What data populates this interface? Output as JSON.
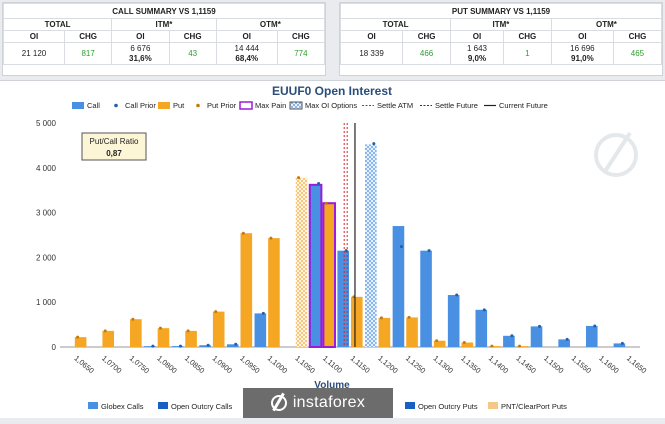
{
  "call_summary": {
    "title": "CALL SUMMARY VS 1,1159",
    "headers": {
      "total": "TOTAL",
      "itm": "ITM*",
      "otm": "OTM*"
    },
    "subheaders": [
      "OI",
      "CHG",
      "OI",
      "CHG",
      "OI",
      "CHG"
    ],
    "total_oi": "21 120",
    "total_chg": "817",
    "itm_oi": "6 676",
    "itm_pct": "31,6%",
    "itm_chg": "43",
    "otm_oi": "14 444",
    "otm_pct": "68,4%",
    "otm_chg": "774"
  },
  "put_summary": {
    "title": "PUT SUMMARY VS 1,1159",
    "headers": {
      "total": "TOTAL",
      "itm": "ITM*",
      "otm": "OTM*"
    },
    "subheaders": [
      "OI",
      "CHG",
      "OI",
      "CHG",
      "OI",
      "CHG"
    ],
    "total_oi": "18 339",
    "total_chg": "466",
    "itm_oi": "1 643",
    "itm_pct": "9,0%",
    "itm_chg": "1",
    "otm_oi": "16 696",
    "otm_pct": "91,0%",
    "otm_chg": "465"
  },
  "ratio_box": {
    "label": "Put/Call Ratio",
    "value": "0,87"
  },
  "bottom_legend": [
    "Globex Calls",
    "Open Outcry Calls",
    "Open Outcry Puts",
    "PNT/ClearPort Puts"
  ],
  "banner": {
    "text": "instaforex"
  },
  "colors": {
    "call": "#4a90e2",
    "put": "#f5a623",
    "max_pain": "#9b1bd8",
    "settle_atm": "#e02020",
    "green": "#2e9d2e"
  },
  "chart_data": {
    "type": "bar",
    "title": "EUUF0 Open Interest",
    "xlabel": "Volume",
    "ylabel": "",
    "ylim": [
      0,
      5000
    ],
    "yticks": [
      0,
      1000,
      2000,
      3000,
      4000,
      5000
    ],
    "ytick_labels": [
      "0",
      "1 000",
      "2 000",
      "3 000",
      "4 000",
      "5 000"
    ],
    "categories": [
      "1,0650",
      "1,0700",
      "1,0750",
      "1,0800",
      "1,0850",
      "1,0900",
      "1,0950",
      "1,1000",
      "1,1050",
      "1,1100",
      "1,1150",
      "1,1200",
      "1,1250",
      "1,1300",
      "1,1350",
      "1,1400",
      "1,1450",
      "1,1500",
      "1,1550",
      "1,1600",
      "1,1650"
    ],
    "tick_labels": [
      "1,0650",
      "1,0700",
      "1,0750",
      "1,0800",
      "1,0850",
      "1,0900",
      "1,0950",
      "1,1000",
      "1,1050",
      "1,1100",
      "1,1150",
      "1,1200",
      "1,1250",
      "1,1300",
      "1,1350",
      "1,1400",
      "1,1450",
      "1,1500",
      "1,1550",
      "1,1600",
      "1,1650"
    ],
    "legend": [
      "Call",
      "Call Prior",
      "Put",
      "Put Prior",
      "Max Pain",
      "Max OI Options",
      "Settle ATM",
      "Settle Future",
      "Current Future"
    ],
    "legend_position": "top",
    "grid": false,
    "series": [
      {
        "name": "Call",
        "values": [
          0,
          0,
          0,
          20,
          20,
          40,
          60,
          750,
          0,
          3620,
          2150,
          4520,
          2700,
          2150,
          1160,
          830,
          250,
          460,
          170,
          470,
          80
        ]
      },
      {
        "name": "Call Prior",
        "values": [
          0,
          0,
          0,
          20,
          20,
          40,
          60,
          750,
          0,
          3650,
          2150,
          4540,
          2240,
          2150,
          1160,
          830,
          250,
          460,
          170,
          470,
          80
        ]
      },
      {
        "name": "Put",
        "values": [
          220,
          360,
          620,
          420,
          360,
          790,
          2540,
          2430,
          3780,
          3210,
          1120,
          650,
          660,
          140,
          100,
          20,
          20,
          0,
          0,
          0,
          0
        ]
      },
      {
        "name": "Put Prior",
        "values": [
          220,
          360,
          620,
          420,
          360,
          790,
          2540,
          2430,
          3780,
          3210,
          1120,
          650,
          660,
          140,
          100,
          20,
          20,
          0,
          0,
          0,
          0
        ]
      }
    ],
    "max_pain_category": "1,1100",
    "max_oi_call_category": "1,1200",
    "max_oi_put_category": "1,1050",
    "settle_atm_category": "1,1150",
    "current_future_x": 1.1159
  }
}
